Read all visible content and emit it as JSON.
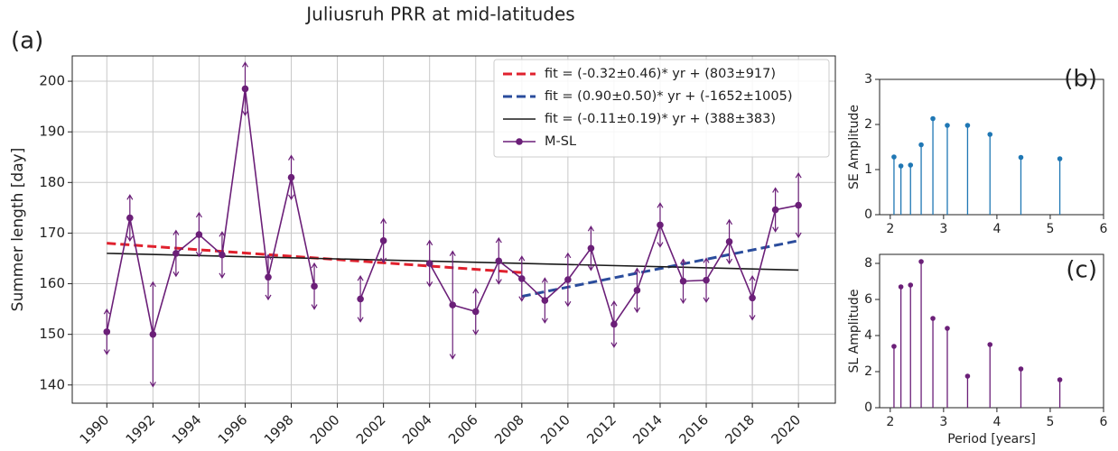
{
  "chart_data": [
    {
      "type": "line",
      "title": "Juliusruh PRR at mid-latitudes",
      "panel_label": "(a)",
      "y_label": "Summer length [day]",
      "xlim": [
        1988.5,
        2021.6
      ],
      "xticks": [
        1990,
        1992,
        1994,
        1996,
        1998,
        2000,
        2002,
        2004,
        2006,
        2008,
        2010,
        2012,
        2014,
        2016,
        2018,
        2020
      ],
      "ylim": [
        136.4,
        205
      ],
      "yticks": [
        140,
        150,
        160,
        170,
        180,
        190,
        200
      ],
      "grid": true,
      "legend": "upper right",
      "series": [
        {
          "name": "fit = (-0.32±0.46)* yr + (803±917)",
          "color": "#e0212e",
          "dash": true,
          "x": [
            1990,
            2008
          ],
          "values": [
            168,
            162.2
          ]
        },
        {
          "name": "fit = (0.90±0.50)* yr + (-1652±1005)",
          "color": "#2a4c9c",
          "dash": true,
          "x": [
            2008,
            2020
          ],
          "values": [
            157.5,
            168.5
          ]
        },
        {
          "name": "fit = (-0.11±0.19)* yr + (388±383)",
          "color": "#1a1a1a",
          "dash": false,
          "x": [
            1990,
            2020
          ],
          "values": [
            166,
            162.7
          ]
        },
        {
          "name": "M-SL",
          "color": "#6b1f78",
          "dash": false,
          "marker": true,
          "x": [
            1990,
            1991,
            1992,
            1993,
            1994,
            1995,
            1996,
            1997,
            1998,
            1999,
            2000,
            2001,
            2002,
            2003,
            2004,
            2005,
            2006,
            2007,
            2008,
            2009,
            2010,
            2011,
            2012,
            2013,
            2014,
            2015,
            2016,
            2017,
            2018,
            2019,
            2020
          ],
          "values": [
            150.5,
            173,
            150,
            166,
            169.7,
            165.7,
            198.5,
            161.3,
            181,
            159.5,
            null,
            157,
            168.5,
            null,
            164,
            155.8,
            154.5,
            164.5,
            161,
            156.7,
            160.8,
            167,
            152,
            158.7,
            171.6,
            160.5,
            160.7,
            168.3,
            157.2,
            174.6,
            175.5
          ],
          "errors": [
            4.4,
            4.5,
            10.3,
            4.5,
            4.3,
            4.5,
            5.2,
            4.4,
            4.3,
            4.5,
            null,
            4.5,
            4.3,
            null,
            4.5,
            10.6,
            4.5,
            4.5,
            4.4,
            4.4,
            5.2,
            4.3,
            4.5,
            4.3,
            4.3,
            4.3,
            4.3,
            4.3,
            4.3,
            4.3,
            6.3
          ]
        }
      ]
    },
    {
      "type": "stem",
      "panel_label": "(b)",
      "y_label": "SE Amplitude",
      "color": "#1f77b4",
      "x": [
        2.07,
        2.2,
        2.38,
        2.58,
        2.8,
        3.07,
        3.45,
        3.87,
        4.45,
        5.18
      ],
      "values": [
        1.28,
        1.08,
        1.1,
        1.55,
        2.13,
        1.98,
        1.98,
        1.78,
        1.27,
        1.24
      ],
      "xlim": [
        1.8,
        6
      ],
      "xticks": [
        2,
        3,
        4,
        5,
        6
      ],
      "ylim": [
        0,
        3
      ],
      "yticks": [
        0,
        1,
        2,
        3
      ],
      "grid": false
    },
    {
      "type": "stem",
      "panel_label": "(c)",
      "y_label": "SL Amplitude",
      "x_label": "Period [years]",
      "color": "#6b1f78",
      "x": [
        2.07,
        2.2,
        2.38,
        2.58,
        2.8,
        3.07,
        3.45,
        3.87,
        4.45,
        5.18
      ],
      "values": [
        3.4,
        6.7,
        6.8,
        8.1,
        4.95,
        4.4,
        1.75,
        3.5,
        2.15,
        1.55
      ],
      "xlim": [
        1.8,
        6
      ],
      "xticks": [
        2,
        3,
        4,
        5,
        6
      ],
      "ylim": [
        0,
        8.5
      ],
      "yticks": [
        0,
        2,
        4,
        6,
        8
      ],
      "grid": false
    }
  ]
}
